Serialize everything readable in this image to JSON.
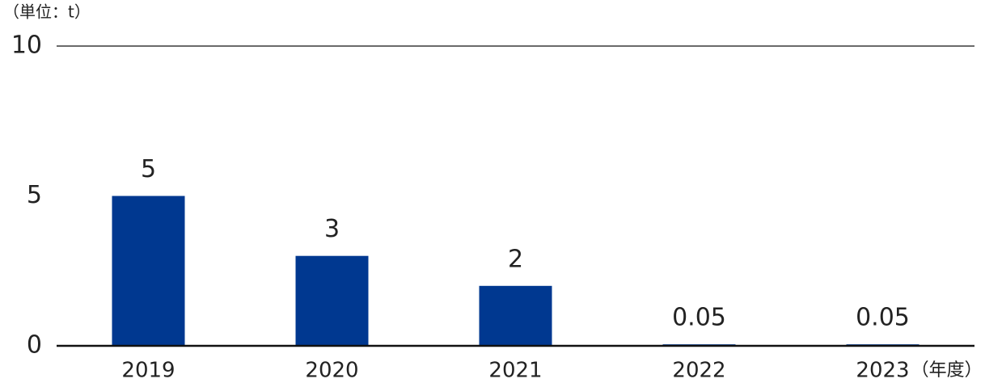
{
  "chart_data": {
    "type": "bar",
    "y_unit": "（単位：t）",
    "x_unit": "（年度）",
    "categories": [
      "2019",
      "2020",
      "2021",
      "2022",
      "2023"
    ],
    "values": [
      5,
      3,
      2,
      0.05,
      0.05
    ],
    "color": "#003890",
    "ylim": [
      0,
      10
    ],
    "yticks": [
      0,
      5,
      10
    ]
  }
}
